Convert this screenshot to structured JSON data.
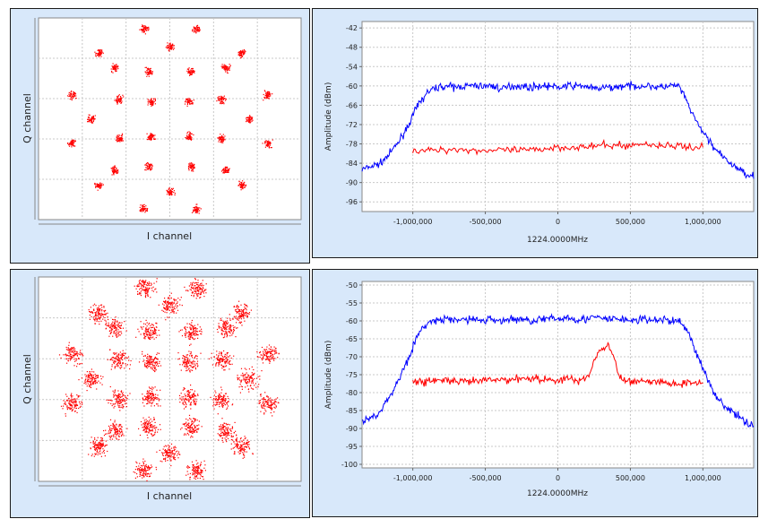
{
  "colors": {
    "panel_bg": "#d8e8fa",
    "plot_bg": "#ffffff",
    "grid": "#c8c8c8",
    "series_blue": "#0000ff",
    "series_red": "#ff0000",
    "points": "#ff0000"
  },
  "chart_data": [
    {
      "type": "scatter",
      "subtype": "constellation",
      "xlabel": "I channel",
      "ylabel": "Q channel",
      "grid": true,
      "pattern": "32-point constellation in 4 concentric rings (4, 8, 8, 12 clusters)",
      "points_style": "red dots",
      "spread": "tight clusters"
    },
    {
      "type": "line",
      "xlabel": "1224.0000MHz",
      "ylabel": "Amplitude (dBm)",
      "xlim": [
        -1350000,
        1350000
      ],
      "ylim": [
        -99,
        -40
      ],
      "x_ticks": [
        "-1,000,000",
        "-500,000",
        "0",
        "500,000",
        "1,000,000"
      ],
      "x_tick_values": [
        -1000000,
        -500000,
        0,
        500000,
        1000000
      ],
      "y_ticks": [
        "-42",
        "-48",
        "-54",
        "-60",
        "-66",
        "-72",
        "-78",
        "-84",
        "-90",
        "-96"
      ],
      "y_tick_values": [
        -42,
        -48,
        -54,
        -60,
        -66,
        -72,
        -78,
        -84,
        -90,
        -96
      ],
      "grid": true,
      "series": [
        {
          "color": "#0000ff",
          "x_range": [
            -1350000,
            1350000
          ],
          "values": [
            -86,
            -85,
            -84,
            -81,
            -77,
            -72,
            -66,
            -62,
            -60.5,
            -60,
            -60.5,
            -60,
            -60,
            -60,
            -60,
            -61,
            -60,
            -60,
            -60.5,
            -60,
            -60,
            -60.5,
            -60,
            -60,
            -60,
            -61,
            -60.5,
            -60.5,
            -60,
            -60,
            -60,
            -60,
            -60.5,
            -60,
            -60,
            -66,
            -72,
            -76,
            -80,
            -83,
            -85,
            -87,
            -88
          ]
        },
        {
          "color": "#ff0000",
          "x_range": [
            -1000000,
            1000000
          ],
          "values": [
            -80,
            -80,
            -80,
            -79.5,
            -80,
            -80,
            -80,
            -80,
            -80,
            -79.5,
            -79,
            -79,
            -79,
            -78.5,
            -78.5,
            -78.5,
            -78,
            -78.5,
            -78.5,
            -79,
            -79
          ]
        }
      ]
    },
    {
      "type": "scatter",
      "subtype": "constellation",
      "xlabel": "I channel",
      "ylabel": "Q channel",
      "grid": true,
      "pattern": "32-point constellation in 4 concentric rings (4, 8, 8, 12 clusters)",
      "points_style": "red dots",
      "spread": "heavily spread"
    },
    {
      "type": "line",
      "xlabel": "1224.0000MHz",
      "ylabel": "Amplitude (dBm)",
      "xlim": [
        -1350000,
        1350000
      ],
      "ylim": [
        -101,
        -49
      ],
      "x_ticks": [
        "-1,000,000",
        "-500,000",
        "0",
        "500,000",
        "1,000,000"
      ],
      "x_tick_values": [
        -1000000,
        -500000,
        0,
        500000,
        1000000
      ],
      "y_ticks": [
        "-50",
        "-55",
        "-60",
        "-65",
        "-70",
        "-75",
        "-80",
        "-85",
        "-90",
        "-95",
        "-100"
      ],
      "y_tick_values": [
        -50,
        -55,
        -60,
        -65,
        -70,
        -75,
        -80,
        -85,
        -90,
        -95,
        -100
      ],
      "grid": true,
      "series": [
        {
          "color": "#0000ff",
          "x_range": [
            -1350000,
            1350000
          ],
          "values": [
            -88,
            -87,
            -85,
            -81,
            -76,
            -70,
            -64,
            -60.5,
            -60,
            -59.5,
            -60,
            -59.5,
            -59.5,
            -60,
            -59.5,
            -60,
            -59.5,
            -59.5,
            -60,
            -59.5,
            -59.5,
            -59.5,
            -59,
            -59.5,
            -59.5,
            -59,
            -59.5,
            -59.5,
            -59.5,
            -60,
            -59.5,
            -60,
            -59.5,
            -60,
            -60,
            -63,
            -70,
            -76,
            -81,
            -84,
            -86,
            -88,
            -89
          ]
        },
        {
          "color": "#ff0000",
          "x_range": [
            -1000000,
            1000000
          ],
          "values": [
            -77,
            -77,
            -76.5,
            -76.5,
            -77,
            -77,
            -77,
            -76.5,
            -76.5,
            -76.5,
            -76,
            -76,
            -76,
            -76.5,
            -76.5,
            -76,
            -77,
            -75,
            -68,
            -67,
            -76,
            -77,
            -76.5,
            -77,
            -77,
            -77.5,
            -77.5,
            -77,
            -77
          ]
        }
      ]
    }
  ]
}
